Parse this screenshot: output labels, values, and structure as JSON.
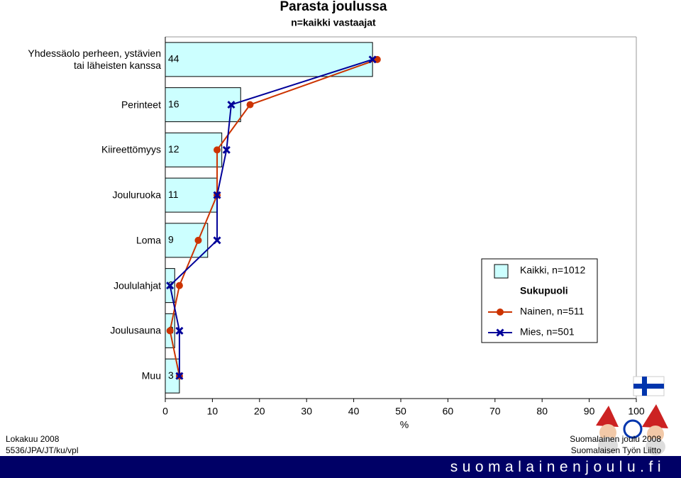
{
  "chart_data": {
    "type": "bar",
    "title": "Parasta joulussa",
    "subtitle": "n=kaikki vastaajat",
    "categories": [
      "Yhdessäolo perheen, ystävien\ntai läheisten kanssa",
      "Perinteet",
      "Kiireettömyys",
      "Jouluruoka",
      "Loma",
      "Joululahjat",
      "Joulusauna",
      "Muu"
    ],
    "series": [
      {
        "name": "Kaikki, n=1012",
        "type": "bar",
        "color": "#ccffff",
        "values": [
          44,
          16,
          12,
          11,
          9,
          2,
          2,
          3
        ]
      },
      {
        "name": "Nainen, n=511",
        "type": "line",
        "marker": "circle",
        "color": "#cc3300",
        "values": [
          45,
          18,
          11,
          11,
          7,
          3,
          1,
          3
        ]
      },
      {
        "name": "Mies, n=501",
        "type": "line",
        "marker": "x",
        "color": "#000099",
        "values": [
          44,
          14,
          13,
          11,
          11,
          1,
          3,
          3
        ]
      }
    ],
    "legend_group_title": "Sukupuoli",
    "legend": "right",
    "xlabel": "%",
    "xlim": [
      0,
      100
    ],
    "xticks": [
      0,
      10,
      20,
      30,
      40,
      50,
      60,
      70,
      80,
      90,
      100
    ]
  },
  "footer": {
    "left": [
      "Lokakuu 2008",
      "5536/JPA/JT/ku/vpl"
    ],
    "right": [
      "Suomalainen joulu 2008",
      "Suomalaisen Työn Liitto"
    ],
    "banner": "suomalainenjoulu.fi"
  }
}
